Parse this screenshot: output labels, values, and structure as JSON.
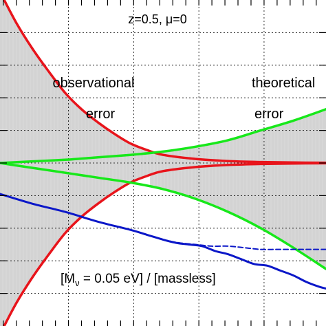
{
  "chart_data": {
    "type": "line",
    "title": "",
    "xlabel": "",
    "ylabel": "",
    "xlim": [
      0,
      1
    ],
    "ylim": [
      -1,
      1
    ],
    "grid": true,
    "x_ticks": [
      0.21,
      0.41,
      0.61,
      0.81
    ],
    "y_ticks": [
      0.8,
      0.6,
      0.4,
      0.2,
      0.0,
      -0.2,
      -0.4,
      -0.6,
      -0.8
    ],
    "annotations": {
      "condition": "z=0.5, μ=0",
      "obs_line1": "observational",
      "obs_line2": "error",
      "theo_line1": "theoretical",
      "theo_line2": "error",
      "ratio_label": "[M",
      "ratio_sub": "ν",
      "ratio_rest": " = 0.05 eV] / [massless]"
    },
    "bands": {
      "observational": {
        "x": [
          0.0,
          0.46
        ],
        "upper": "red_upper",
        "lower": "red_lower"
      },
      "theoretical": {
        "x": [
          0.46,
          1.0
        ],
        "upper": "green_upper",
        "lower": "green_lower"
      }
    },
    "series": [
      {
        "id": "red_upper",
        "color": "#e8141b",
        "style": "solid",
        "x": [
          0.0,
          0.05,
          0.1,
          0.15,
          0.2,
          0.25,
          0.3,
          0.35,
          0.4,
          0.45,
          0.5,
          0.6,
          0.7,
          0.8,
          0.9,
          1.0
        ],
        "y": [
          1.05,
          0.86,
          0.7,
          0.56,
          0.43,
          0.33,
          0.25,
          0.18,
          0.12,
          0.08,
          0.05,
          0.025,
          0.012,
          0.006,
          0.003,
          0.0015
        ]
      },
      {
        "id": "red_lower",
        "color": "#e8141b",
        "style": "solid",
        "x": [
          0.0,
          0.05,
          0.1,
          0.15,
          0.2,
          0.25,
          0.3,
          0.35,
          0.4,
          0.45,
          0.5,
          0.6,
          0.7,
          0.8,
          0.9,
          1.0
        ],
        "y": [
          -1.05,
          -0.86,
          -0.7,
          -0.56,
          -0.43,
          -0.33,
          -0.25,
          -0.18,
          -0.12,
          -0.08,
          -0.05,
          -0.025,
          -0.012,
          -0.006,
          -0.003,
          -0.0015
        ]
      },
      {
        "id": "green_upper",
        "color": "#17e81a",
        "style": "solid",
        "x": [
          0.0,
          0.1,
          0.2,
          0.3,
          0.4,
          0.5,
          0.6,
          0.7,
          0.8,
          0.9,
          1.0
        ],
        "y": [
          0.0,
          0.01,
          0.02,
          0.035,
          0.05,
          0.07,
          0.1,
          0.14,
          0.2,
          0.26,
          0.33
        ]
      },
      {
        "id": "green_lower",
        "color": "#17e81a",
        "style": "solid",
        "x": [
          0.0,
          0.1,
          0.2,
          0.3,
          0.4,
          0.5,
          0.6,
          0.7,
          0.8,
          0.9,
          1.0
        ],
        "y": [
          0.0,
          -0.03,
          -0.06,
          -0.09,
          -0.12,
          -0.16,
          -0.22,
          -0.3,
          -0.4,
          -0.52,
          -0.65
        ]
      },
      {
        "id": "blue_solid",
        "color": "#0b17c8",
        "style": "solid",
        "x": [
          0.0,
          0.1,
          0.2,
          0.3,
          0.4,
          0.45,
          0.5,
          0.54,
          0.58,
          0.62,
          0.66,
          0.7,
          0.74,
          0.78,
          0.82,
          0.86,
          0.9,
          0.94,
          0.98,
          1.0
        ],
        "y": [
          -0.19,
          -0.25,
          -0.3,
          -0.36,
          -0.41,
          -0.44,
          -0.47,
          -0.49,
          -0.5,
          -0.51,
          -0.54,
          -0.56,
          -0.59,
          -0.62,
          -0.63,
          -0.66,
          -0.69,
          -0.73,
          -0.76,
          -0.77
        ]
      },
      {
        "id": "blue_dashed",
        "color": "#0b17c8",
        "style": "dashed",
        "x": [
          0.5,
          0.55,
          0.6,
          0.65,
          0.7,
          0.75,
          0.8,
          0.85,
          0.9,
          0.95,
          1.0
        ],
        "y": [
          -0.47,
          -0.49,
          -0.5,
          -0.51,
          -0.51,
          -0.52,
          -0.53,
          -0.53,
          -0.53,
          -0.53,
          -0.53
        ]
      }
    ]
  }
}
